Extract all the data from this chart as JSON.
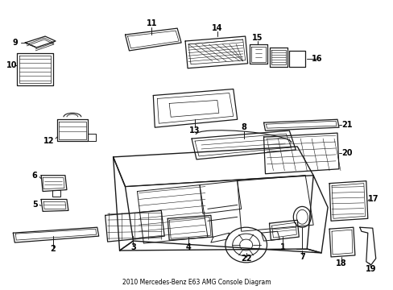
{
  "title": "2010 Mercedes-Benz E63 AMG Console Diagram",
  "bg_color": "#ffffff",
  "line_color": "#1a1a1a",
  "fig_width": 4.89,
  "fig_height": 3.6,
  "dpi": 100
}
